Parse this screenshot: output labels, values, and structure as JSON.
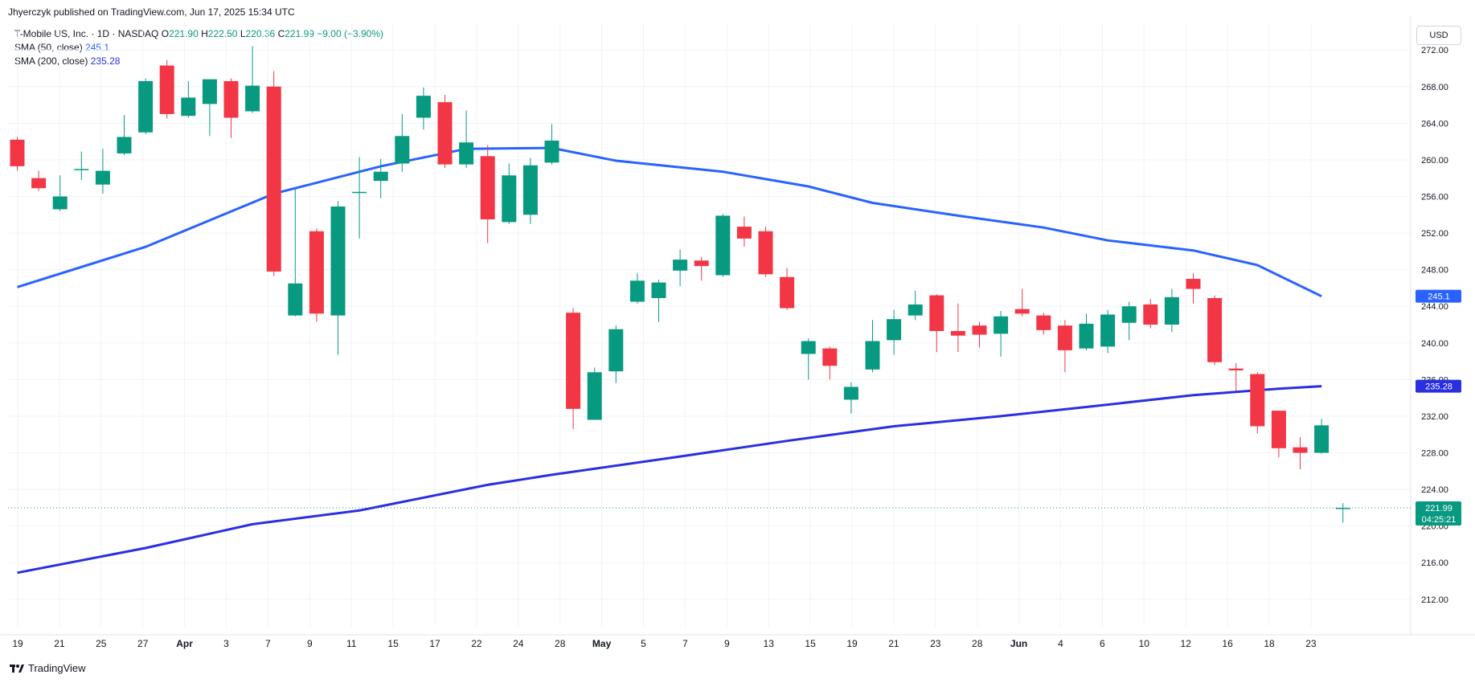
{
  "publisher_line": "Jhyerczyk published on TradingView.com, Jun 17, 2025 15:34 UTC",
  "legend": {
    "symbol": "T-Mobile US, Inc. · 1D · NASDAQ",
    "o_label": "O",
    "o_value": "221.90",
    "h_label": "H",
    "h_value": "222.50",
    "l_label": "L",
    "l_value": "220.36",
    "c_label": "C",
    "c_value": "221.99",
    "change": "−9.00 (−3.90%)",
    "sma50_label": "SMA (50, close)",
    "sma50_value": "245.1",
    "sma200_label": "SMA (200, close)",
    "sma200_value": "235.28"
  },
  "currency": "USD",
  "footer_brand": "TradingView",
  "colors": {
    "up": "#089981",
    "down": "#f23645",
    "sma50": "#2962ff",
    "sma200": "#2a2fe0",
    "grid": "#f0f3fa"
  },
  "chart_data": {
    "type": "candlestick",
    "ylim": [
      209,
      275
    ],
    "y_ticks": [
      212,
      216,
      220,
      224,
      228,
      232,
      236,
      240,
      244,
      248,
      252,
      256,
      260,
      264,
      268,
      272
    ],
    "x_tick_labels": [
      "19",
      "21",
      "25",
      "27",
      "Apr",
      "3",
      "7",
      "9",
      "11",
      "15",
      "17",
      "22",
      "24",
      "28",
      "May",
      "5",
      "7",
      "9",
      "13",
      "15",
      "19",
      "21",
      "23",
      "28",
      "Jun",
      "4",
      "6",
      "10",
      "12",
      "16",
      "18",
      "23"
    ],
    "candles": [
      {
        "date": "2025-03-19",
        "o": 262.2,
        "h": 262.5,
        "l": 258.8,
        "c": 259.3
      },
      {
        "date": "2025-03-20",
        "o": 258.0,
        "h": 258.8,
        "l": 256.6,
        "c": 256.9
      },
      {
        "date": "2025-03-21",
        "o": 254.6,
        "h": 258.3,
        "l": 254.4,
        "c": 256.0
      },
      {
        "date": "2025-03-24",
        "o": 258.9,
        "h": 260.9,
        "l": 257.8,
        "c": 259.0
      },
      {
        "date": "2025-03-25",
        "o": 257.3,
        "h": 261.2,
        "l": 256.3,
        "c": 258.8
      },
      {
        "date": "2025-03-26",
        "o": 260.7,
        "h": 264.9,
        "l": 260.5,
        "c": 262.5
      },
      {
        "date": "2025-03-27",
        "o": 263.0,
        "h": 268.9,
        "l": 262.8,
        "c": 268.6
      },
      {
        "date": "2025-03-28",
        "o": 270.3,
        "h": 270.9,
        "l": 264.5,
        "c": 265.0
      },
      {
        "date": "2025-03-31",
        "o": 264.8,
        "h": 268.6,
        "l": 264.6,
        "c": 266.8
      },
      {
        "date": "2025-04-01",
        "o": 266.1,
        "h": 268.8,
        "l": 262.6,
        "c": 268.8
      },
      {
        "date": "2025-04-02",
        "o": 268.6,
        "h": 268.9,
        "l": 262.4,
        "c": 264.6
      },
      {
        "date": "2025-04-03",
        "o": 265.3,
        "h": 272.4,
        "l": 265.1,
        "c": 268.1
      },
      {
        "date": "2025-04-04",
        "o": 268.0,
        "h": 269.7,
        "l": 247.3,
        "c": 247.8
      },
      {
        "date": "2025-04-07",
        "o": 243.0,
        "h": 257.0,
        "l": 242.9,
        "c": 246.5
      },
      {
        "date": "2025-04-08",
        "o": 252.2,
        "h": 252.5,
        "l": 242.3,
        "c": 243.2
      },
      {
        "date": "2025-04-09",
        "o": 243.0,
        "h": 255.5,
        "l": 238.7,
        "c": 254.9
      },
      {
        "date": "2025-04-10",
        "o": 256.5,
        "h": 260.3,
        "l": 251.4,
        "c": 256.5
      },
      {
        "date": "2025-04-11",
        "o": 257.7,
        "h": 260.1,
        "l": 255.8,
        "c": 258.7
      },
      {
        "date": "2025-04-14",
        "o": 259.6,
        "h": 265.0,
        "l": 258.7,
        "c": 262.6
      },
      {
        "date": "2025-04-15",
        "o": 264.6,
        "h": 267.9,
        "l": 263.3,
        "c": 267.0
      },
      {
        "date": "2025-04-16",
        "o": 266.3,
        "h": 267.1,
        "l": 259.1,
        "c": 259.5
      },
      {
        "date": "2025-04-17",
        "o": 259.5,
        "h": 265.4,
        "l": 259.1,
        "c": 261.9
      },
      {
        "date": "2025-04-21",
        "o": 260.4,
        "h": 261.6,
        "l": 250.9,
        "c": 253.5
      },
      {
        "date": "2025-04-22",
        "o": 253.2,
        "h": 259.6,
        "l": 253.0,
        "c": 258.3
      },
      {
        "date": "2025-04-23",
        "o": 254.0,
        "h": 260.2,
        "l": 253.0,
        "c": 259.4
      },
      {
        "date": "2025-04-24",
        "o": 259.7,
        "h": 263.9,
        "l": 259.5,
        "c": 262.1
      },
      {
        "date": "2025-04-25",
        "o": 243.3,
        "h": 243.8,
        "l": 230.6,
        "c": 232.8
      },
      {
        "date": "2025-04-28",
        "o": 231.6,
        "h": 237.3,
        "l": 231.6,
        "c": 236.8
      },
      {
        "date": "2025-04-29",
        "o": 236.9,
        "h": 241.9,
        "l": 235.6,
        "c": 241.5
      },
      {
        "date": "2025-04-30",
        "o": 244.5,
        "h": 247.6,
        "l": 244.3,
        "c": 246.8
      },
      {
        "date": "2025-05-01",
        "o": 244.9,
        "h": 246.9,
        "l": 242.3,
        "c": 246.6
      },
      {
        "date": "2025-05-02",
        "o": 247.9,
        "h": 250.2,
        "l": 246.2,
        "c": 249.1
      },
      {
        "date": "2025-05-05",
        "o": 249.0,
        "h": 249.4,
        "l": 246.8,
        "c": 248.4
      },
      {
        "date": "2025-05-06",
        "o": 247.4,
        "h": 254.1,
        "l": 247.2,
        "c": 253.9
      },
      {
        "date": "2025-05-07",
        "o": 252.7,
        "h": 253.8,
        "l": 250.5,
        "c": 251.4
      },
      {
        "date": "2025-05-08",
        "o": 252.2,
        "h": 252.7,
        "l": 247.2,
        "c": 247.5
      },
      {
        "date": "2025-05-09",
        "o": 247.2,
        "h": 248.2,
        "l": 243.6,
        "c": 243.8
      },
      {
        "date": "2025-05-12",
        "o": 238.8,
        "h": 240.5,
        "l": 236.0,
        "c": 240.2
      },
      {
        "date": "2025-05-13",
        "o": 239.4,
        "h": 239.6,
        "l": 236.0,
        "c": 237.5
      },
      {
        "date": "2025-05-14",
        "o": 233.8,
        "h": 235.7,
        "l": 232.3,
        "c": 235.2
      },
      {
        "date": "2025-05-15",
        "o": 237.1,
        "h": 242.5,
        "l": 236.8,
        "c": 240.2
      },
      {
        "date": "2025-05-16",
        "o": 240.3,
        "h": 243.6,
        "l": 238.7,
        "c": 242.6
      },
      {
        "date": "2025-05-19",
        "o": 243.0,
        "h": 245.7,
        "l": 242.5,
        "c": 244.2
      },
      {
        "date": "2025-05-20",
        "o": 245.2,
        "h": 245.3,
        "l": 239.0,
        "c": 241.3
      },
      {
        "date": "2025-05-21",
        "o": 241.3,
        "h": 244.3,
        "l": 239.0,
        "c": 240.8
      },
      {
        "date": "2025-05-22",
        "o": 241.9,
        "h": 242.3,
        "l": 239.5,
        "c": 240.9
      },
      {
        "date": "2025-05-23",
        "o": 241.0,
        "h": 243.5,
        "l": 238.5,
        "c": 242.9
      },
      {
        "date": "2025-05-27",
        "o": 243.7,
        "h": 245.9,
        "l": 242.9,
        "c": 243.2
      },
      {
        "date": "2025-05-28",
        "o": 243.0,
        "h": 243.3,
        "l": 240.9,
        "c": 241.4
      },
      {
        "date": "2025-05-29",
        "o": 241.9,
        "h": 242.5,
        "l": 236.8,
        "c": 239.2
      },
      {
        "date": "2025-05-30",
        "o": 239.4,
        "h": 243.2,
        "l": 239.2,
        "c": 242.1
      },
      {
        "date": "2025-06-02",
        "o": 239.6,
        "h": 243.6,
        "l": 238.9,
        "c": 243.1
      },
      {
        "date": "2025-06-03",
        "o": 242.2,
        "h": 244.5,
        "l": 240.3,
        "c": 244.0
      },
      {
        "date": "2025-06-04",
        "o": 244.2,
        "h": 244.8,
        "l": 241.6,
        "c": 242.0
      },
      {
        "date": "2025-06-05",
        "o": 242.0,
        "h": 245.9,
        "l": 241.2,
        "c": 245.0
      },
      {
        "date": "2025-06-06",
        "o": 247.0,
        "h": 247.6,
        "l": 244.3,
        "c": 245.9
      },
      {
        "date": "2025-06-09",
        "o": 244.9,
        "h": 245.2,
        "l": 237.6,
        "c": 237.9
      },
      {
        "date": "2025-06-10",
        "o": 237.2,
        "h": 237.8,
        "l": 234.8,
        "c": 237.0
      },
      {
        "date": "2025-06-11",
        "o": 236.6,
        "h": 236.8,
        "l": 230.1,
        "c": 230.9
      },
      {
        "date": "2025-06-12",
        "o": 232.6,
        "h": 232.6,
        "l": 227.5,
        "c": 228.5
      },
      {
        "date": "2025-06-13",
        "o": 228.6,
        "h": 229.7,
        "l": 226.2,
        "c": 228.0
      },
      {
        "date": "2025-06-16",
        "o": 228.0,
        "h": 231.7,
        "l": 227.9,
        "c": 231.0
      },
      {
        "date": "2025-06-17",
        "o": 221.9,
        "h": 222.5,
        "l": 220.36,
        "c": 221.99
      }
    ],
    "series": [
      {
        "name": "SMA (50, close)",
        "points": [
          [
            0,
            246.1
          ],
          [
            6,
            250.5
          ],
          [
            12,
            256.3
          ],
          [
            17,
            259.3
          ],
          [
            21,
            261.2
          ],
          [
            25,
            261.3
          ],
          [
            28,
            259.9
          ],
          [
            33,
            258.7
          ],
          [
            37,
            257.1
          ],
          [
            40,
            255.3
          ],
          [
            44,
            253.9
          ],
          [
            48,
            252.6
          ],
          [
            51,
            251.2
          ],
          [
            55,
            250.1
          ],
          [
            58,
            248.5
          ],
          [
            61,
            245.1
          ]
        ]
      },
      {
        "name": "SMA (200, close)",
        "points": [
          [
            0,
            214.9
          ],
          [
            6,
            217.6
          ],
          [
            11,
            220.2
          ],
          [
            16,
            221.7
          ],
          [
            22,
            224.5
          ],
          [
            25,
            225.6
          ],
          [
            31,
            227.6
          ],
          [
            36,
            229.3
          ],
          [
            41,
            230.9
          ],
          [
            46,
            232.0
          ],
          [
            50,
            233.0
          ],
          [
            55,
            234.3
          ],
          [
            59,
            235.0
          ],
          [
            61,
            235.28
          ]
        ]
      }
    ],
    "last_price": "221.99",
    "countdown": "04:25:21",
    "sma50_tag": "245.1",
    "sma200_tag": "235.28"
  }
}
